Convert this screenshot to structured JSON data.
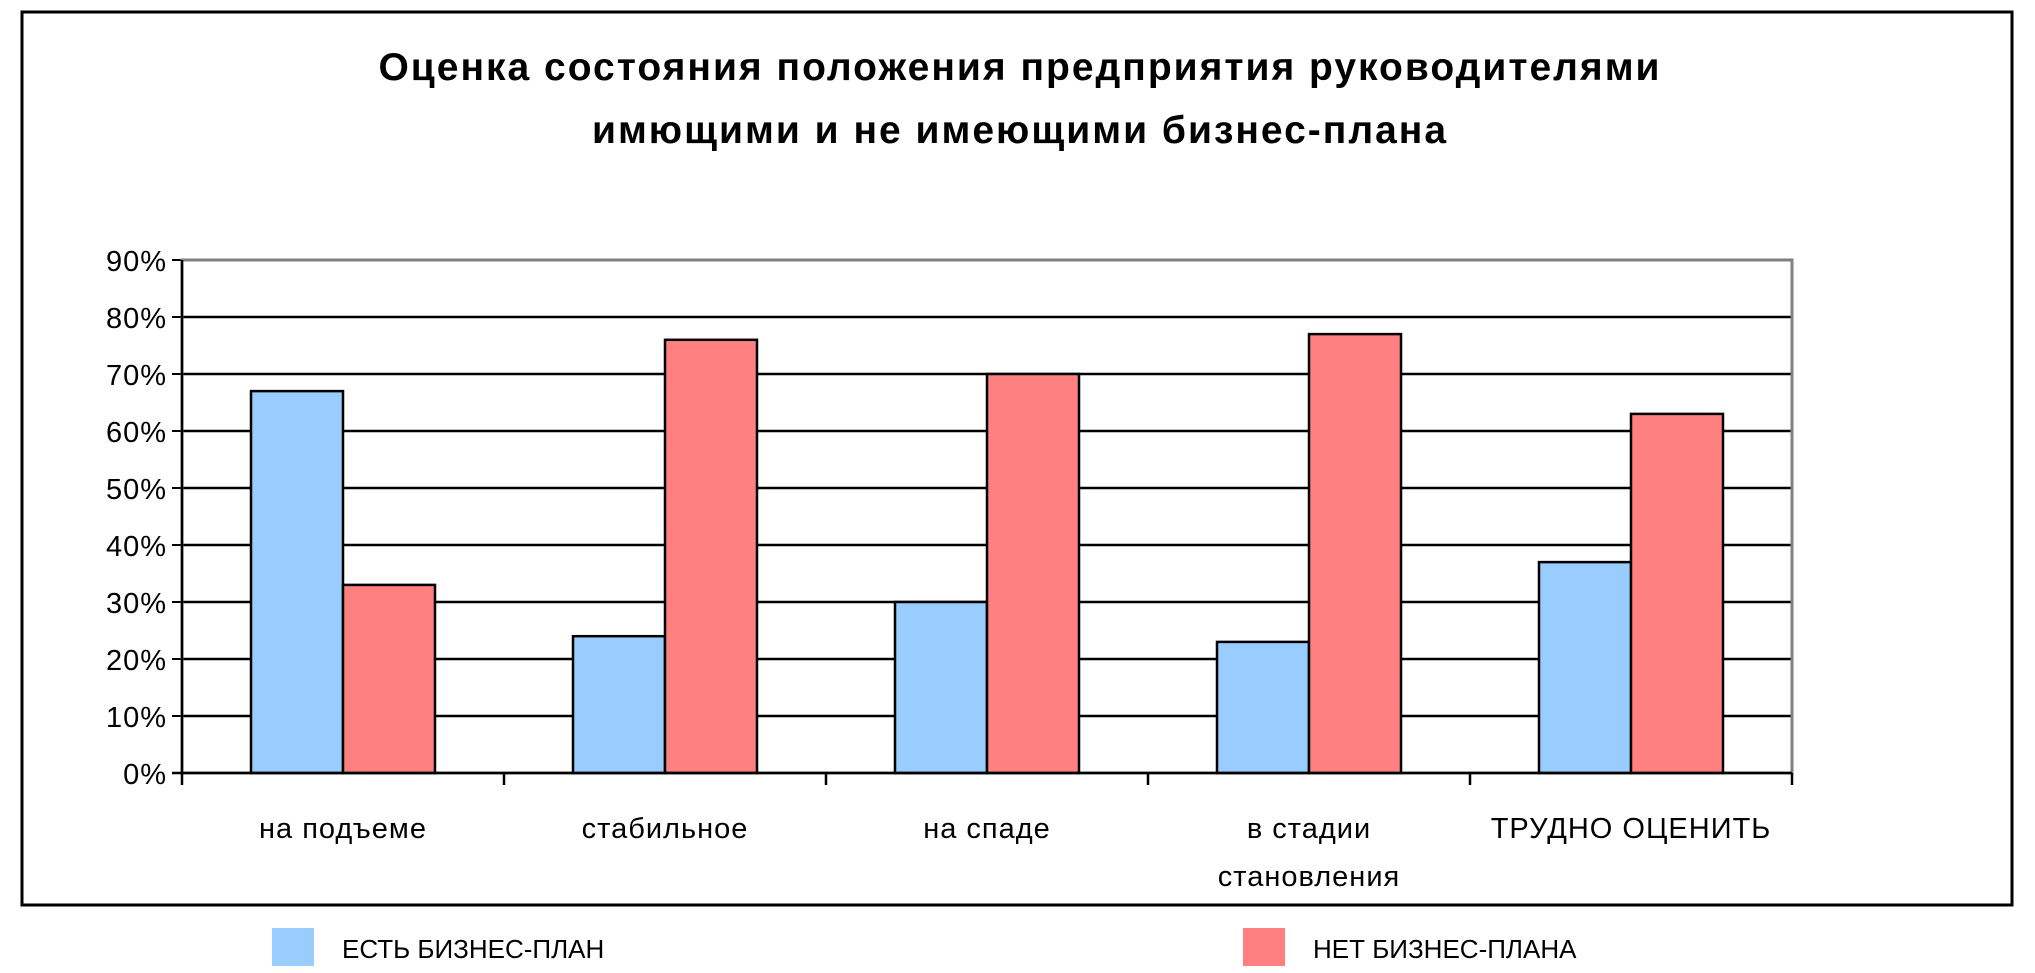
{
  "chart_data": {
    "type": "bar",
    "title_lines": [
      "Оценка состояния положения предприятия руководителями",
      "имющими и не имеющими бизнес-плана"
    ],
    "categories": [
      [
        "на подъеме"
      ],
      [
        "стабильное"
      ],
      [
        "на спаде"
      ],
      [
        "в стадии",
        "становления"
      ],
      [
        "ТРУДНО ОЦЕНИТЬ"
      ]
    ],
    "series": [
      {
        "name": "ЕСТЬ БИЗНЕС-ПЛАН",
        "color": "#99ccff",
        "values": [
          67,
          24,
          30,
          23,
          37
        ]
      },
      {
        "name": "НЕТ БИЗНЕС-ПЛАНА",
        "color": "#ff8080",
        "values": [
          33,
          76,
          70,
          77,
          63
        ]
      }
    ],
    "ylim": [
      0,
      90
    ],
    "yticks": [
      "0%",
      "10%",
      "20%",
      "30%",
      "40%",
      "50%",
      "60%",
      "70%",
      "80%",
      "90%"
    ],
    "grid": true,
    "legend_position": "bottom"
  }
}
